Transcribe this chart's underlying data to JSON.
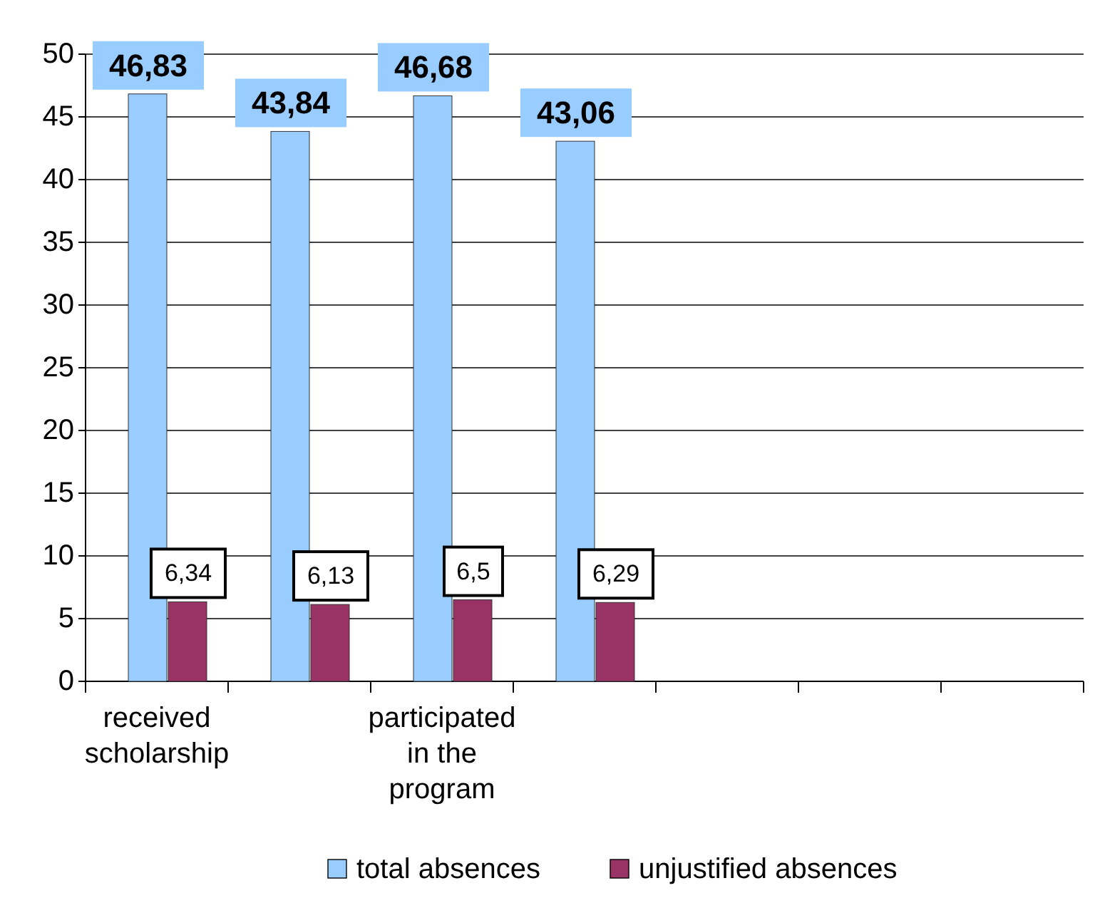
{
  "chart_data": {
    "type": "bar",
    "categories": [
      "received scholarship",
      null,
      "participated in the program",
      null,
      null,
      null,
      null
    ],
    "series": [
      {
        "name": "total absences",
        "color": "#99ccff",
        "values": [
          46.83,
          43.84,
          46.68,
          43.06,
          null,
          null,
          null
        ],
        "value_labels": [
          "46,83",
          "43,84",
          "46,68",
          "43,06",
          null,
          null,
          null
        ]
      },
      {
        "name": "unjustified absences",
        "color": "#993366",
        "values": [
          6.34,
          6.13,
          6.5,
          6.29,
          null,
          null,
          null
        ],
        "value_labels": [
          "6,34",
          "6,13",
          "6,5",
          "6,29",
          null,
          null,
          null
        ]
      }
    ],
    "ylim": [
      0,
      50
    ],
    "yticks": [
      0,
      5,
      10,
      15,
      20,
      25,
      30,
      35,
      40,
      45,
      50
    ],
    "grid": "y",
    "legend": "bottom"
  }
}
